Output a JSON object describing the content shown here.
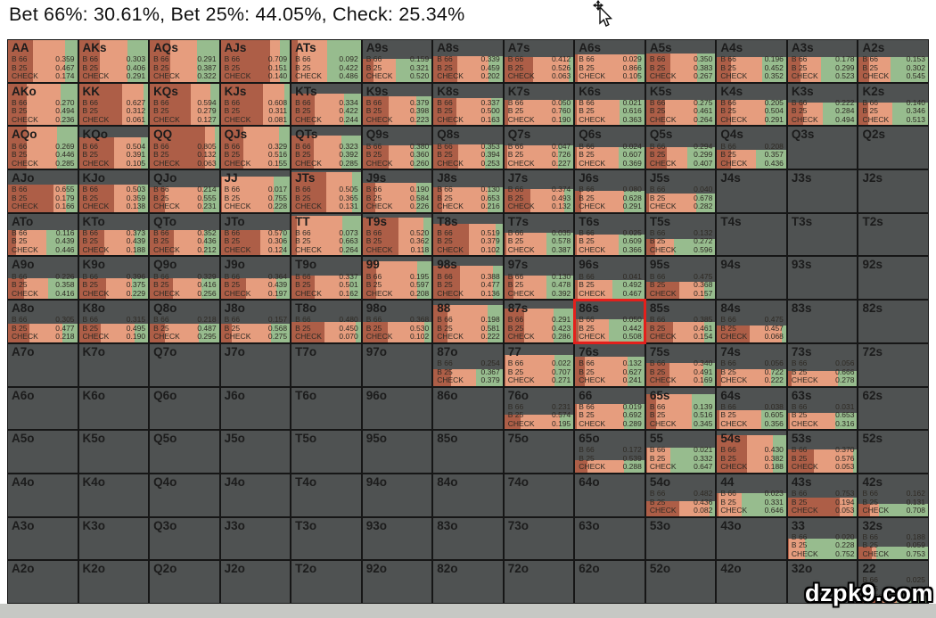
{
  "header": {
    "title": "Bet 66%: 30.61%, Bet 25%: 44.05%, Check: 25.34%",
    "bet66_total": "30.61%",
    "bet25_total": "44.05%",
    "check_total": "25.34%"
  },
  "watermark": {
    "text": "dzpk9.com"
  },
  "colors": {
    "bet66": "#ad5e47",
    "bet25": "#e69d7e",
    "check": "#97bc8e",
    "empty_cell": "#4f5252",
    "grid_line": "#161616",
    "selection": "#e3201c",
    "bottom_strip": "#c6c8c4",
    "title_text": "#111111"
  },
  "grid": {
    "action_labels": [
      "B 66",
      "B 25",
      "CHECK"
    ],
    "selected_hand": "86s",
    "rows": [
      [
        {
          "h": "AA",
          "w": 1,
          "v": [
            "0.359",
            "0.467",
            "0.174"
          ]
        },
        {
          "h": "AKs",
          "w": 1,
          "v": [
            "0.303",
            "0.406",
            "0.291"
          ]
        },
        {
          "h": "AQs",
          "w": 1,
          "v": [
            "0.291",
            "0.387",
            "0.322"
          ]
        },
        {
          "h": "AJs",
          "w": 1,
          "v": [
            "0.709",
            "0.151",
            "0.140"
          ]
        },
        {
          "h": "ATs",
          "w": 1,
          "v": [
            "0.092",
            "0.422",
            "0.486"
          ]
        },
        {
          "h": "A9s",
          "w": 0.55,
          "v": [
            "0.159",
            "0.321",
            "0.520"
          ]
        },
        {
          "h": "A8s",
          "w": 0.62,
          "v": [
            "0.339",
            "0.459",
            "0.202"
          ]
        },
        {
          "h": "A7s",
          "w": 0.6,
          "v": [
            "0.412",
            "0.526",
            "0.063"
          ]
        },
        {
          "h": "A6s",
          "w": 0.65,
          "v": [
            "0.029",
            "0.866",
            "0.105"
          ]
        },
        {
          "h": "A5s",
          "w": 0.68,
          "v": [
            "0.350",
            "0.383",
            "0.267"
          ]
        },
        {
          "h": "A4s",
          "w": 0.6,
          "v": [
            "0.196",
            "0.452",
            "0.352"
          ]
        },
        {
          "h": "A3s",
          "w": 0.6,
          "v": [
            "0.178",
            "0.299",
            "0.523"
          ]
        },
        {
          "h": "A2s",
          "w": 0.6,
          "v": [
            "0.153",
            "0.302",
            "0.545"
          ]
        }
      ],
      [
        {
          "h": "AKo",
          "w": 1,
          "v": [
            "0.270",
            "0.494",
            "0.236"
          ]
        },
        {
          "h": "KK",
          "w": 1,
          "v": [
            "0.627",
            "0.312",
            "0.061"
          ]
        },
        {
          "h": "KQs",
          "w": 1,
          "v": [
            "0.594",
            "0.279",
            "0.127"
          ]
        },
        {
          "h": "KJs",
          "w": 1,
          "v": [
            "0.608",
            "0.311",
            "0.081"
          ]
        },
        {
          "h": "KTs",
          "w": 0.75,
          "v": [
            "0.334",
            "0.422",
            "0.244"
          ]
        },
        {
          "h": "K9s",
          "w": 0.7,
          "v": [
            "0.379",
            "0.398",
            "0.223"
          ]
        },
        {
          "h": "K8s",
          "w": 0.65,
          "v": [
            "0.337",
            "0.500",
            "0.163"
          ]
        },
        {
          "h": "K7s",
          "w": 0.6,
          "v": [
            "0.050",
            "0.760",
            "0.190"
          ]
        },
        {
          "h": "K6s",
          "w": 0.6,
          "v": [
            "0.021",
            "0.616",
            "0.363"
          ]
        },
        {
          "h": "K5s",
          "w": 0.6,
          "v": [
            "0.275",
            "0.461",
            "0.264"
          ]
        },
        {
          "h": "K4s",
          "w": 0.6,
          "v": [
            "0.205",
            "0.504",
            "0.291"
          ]
        },
        {
          "h": "K3s",
          "w": 0.55,
          "v": [
            "0.222",
            "0.284",
            "0.494"
          ]
        },
        {
          "h": "K2s",
          "w": 0.55,
          "v": [
            "0.140",
            "0.346",
            "0.513"
          ]
        }
      ],
      [
        {
          "h": "AQo",
          "w": 1,
          "v": [
            "0.269",
            "0.446",
            "0.285"
          ]
        },
        {
          "h": "KQo",
          "w": 0.75,
          "v": [
            "0.504",
            "0.391",
            "0.105"
          ]
        },
        {
          "h": "QQ",
          "w": 1,
          "v": [
            "0.805",
            "0.132",
            "0.063"
          ]
        },
        {
          "h": "QJs",
          "w": 1,
          "v": [
            "0.329",
            "0.516",
            "0.155"
          ]
        },
        {
          "h": "QTs",
          "w": 0.8,
          "v": [
            "0.323",
            "0.392",
            "0.285"
          ]
        },
        {
          "h": "Q9s",
          "w": 0.55,
          "v": [
            "0.380",
            "0.360",
            "0.260"
          ]
        },
        {
          "h": "Q8s",
          "w": 0.58,
          "v": [
            "0.353",
            "0.394",
            "0.253"
          ]
        },
        {
          "h": "Q7s",
          "w": 0.55,
          "v": [
            "0.047",
            "0.726",
            "0.227"
          ]
        },
        {
          "h": "Q6s",
          "w": 0.52,
          "v": [
            "0.024",
            "0.607",
            "0.369"
          ]
        },
        {
          "h": "Q5s",
          "w": 0.52,
          "v": [
            "0.294",
            "0.299",
            "0.407"
          ]
        },
        {
          "h": "Q4s",
          "w": 0.45,
          "v": [
            "0.208",
            "0.357",
            "0.436"
          ]
        },
        {
          "h": "Q3s"
        },
        {
          "h": "Q2s"
        }
      ],
      [
        {
          "h": "AJo",
          "w": 0.65,
          "v": [
            "0.655",
            "0.179",
            "0.166"
          ]
        },
        {
          "h": "KJo",
          "w": 0.65,
          "v": [
            "0.503",
            "0.359",
            "0.138"
          ]
        },
        {
          "h": "QJo",
          "w": 0.6,
          "v": [
            "0.214",
            "0.555",
            "0.231"
          ]
        },
        {
          "h": "JJ",
          "w": 0.85,
          "v": [
            "0.017",
            "0.755",
            "0.228"
          ]
        },
        {
          "h": "JTs",
          "w": 0.95,
          "v": [
            "0.505",
            "0.365",
            "0.131"
          ]
        },
        {
          "h": "J9s",
          "w": 0.7,
          "v": [
            "0.190",
            "0.584",
            "0.226"
          ]
        },
        {
          "h": "J8s",
          "w": 0.6,
          "v": [
            "0.130",
            "0.653",
            "0.216"
          ]
        },
        {
          "h": "J7s",
          "w": 0.55,
          "v": [
            "0.374",
            "0.493",
            "0.132"
          ]
        },
        {
          "h": "J6s",
          "w": 0.5,
          "v": [
            "0.080",
            "0.628",
            "0.291"
          ]
        },
        {
          "h": "J5s",
          "w": 0.45,
          "v": [
            "0.040",
            "0.678",
            "0.282"
          ]
        },
        {
          "h": "J4s"
        },
        {
          "h": "J3s"
        },
        {
          "h": "J2s"
        }
      ],
      [
        {
          "h": "ATo",
          "w": 0.6,
          "v": [
            "0.116",
            "0.439",
            "0.446"
          ]
        },
        {
          "h": "KTo",
          "w": 0.6,
          "v": [
            "0.373",
            "0.439",
            "0.188"
          ]
        },
        {
          "h": "QTo",
          "w": 0.6,
          "v": [
            "0.352",
            "0.436",
            "0.212"
          ]
        },
        {
          "h": "JTo",
          "w": 0.6,
          "v": [
            "0.570",
            "0.306",
            "0.124"
          ]
        },
        {
          "h": "TT",
          "w": 0.95,
          "v": [
            "0.073",
            "0.663",
            "0.264"
          ]
        },
        {
          "h": "T9s",
          "w": 0.9,
          "v": [
            "0.520",
            "0.362",
            "0.118"
          ]
        },
        {
          "h": "T8s",
          "w": 0.75,
          "v": [
            "0.519",
            "0.379",
            "0.102"
          ]
        },
        {
          "h": "T7s",
          "w": 0.55,
          "v": [
            "0.035",
            "0.578",
            "0.387"
          ]
        },
        {
          "h": "T6s",
          "w": 0.5,
          "v": [
            "0.025",
            "0.609",
            "0.366"
          ]
        },
        {
          "h": "T5s",
          "w": 0.4,
          "v": [
            "0.132",
            "0.272",
            "0.596"
          ]
        },
        {
          "h": "T4s"
        },
        {
          "h": "T3s"
        },
        {
          "h": "T2s"
        }
      ],
      [
        {
          "h": "A9o",
          "w": 0.5,
          "v": [
            "0.226",
            "0.358",
            "0.416"
          ]
        },
        {
          "h": "K9o",
          "w": 0.5,
          "v": [
            "0.396",
            "0.375",
            "0.229"
          ]
        },
        {
          "h": "Q9o",
          "w": 0.5,
          "v": [
            "0.329",
            "0.416",
            "0.256"
          ]
        },
        {
          "h": "J9o",
          "w": 0.5,
          "v": [
            "0.364",
            "0.439",
            "0.197"
          ]
        },
        {
          "h": "T9o",
          "w": 0.55,
          "v": [
            "0.337",
            "0.501",
            "0.162"
          ]
        },
        {
          "h": "99",
          "w": 0.9,
          "v": [
            "0.195",
            "0.597",
            "0.208"
          ]
        },
        {
          "h": "98s",
          "w": 0.8,
          "v": [
            "0.388",
            "0.477",
            "0.136"
          ]
        },
        {
          "h": "97s",
          "w": 0.55,
          "v": [
            "0.130",
            "0.478",
            "0.392"
          ]
        },
        {
          "h": "96s",
          "w": 0.45,
          "v": [
            "0.041",
            "0.492",
            "0.467"
          ]
        },
        {
          "h": "95s",
          "w": 0.4,
          "v": [
            "0.475",
            "0.368",
            "0.157"
          ]
        },
        {
          "h": "94s"
        },
        {
          "h": "93s"
        },
        {
          "h": "92s"
        }
      ],
      [
        {
          "h": "A8o",
          "w": 0.45,
          "v": [
            "0.305",
            "0.477",
            "0.218"
          ]
        },
        {
          "h": "K8o",
          "w": 0.45,
          "v": [
            "0.315",
            "0.495",
            "0.190"
          ]
        },
        {
          "h": "Q8o",
          "w": 0.45,
          "v": [
            "0.218",
            "0.487",
            "0.295"
          ]
        },
        {
          "h": "J8o",
          "w": 0.45,
          "v": [
            "0.157",
            "0.568",
            "0.275"
          ]
        },
        {
          "h": "T8o",
          "w": 0.5,
          "v": [
            "0.480",
            "0.450",
            "0.070"
          ]
        },
        {
          "h": "98o",
          "w": 0.5,
          "v": [
            "0.368",
            "0.530",
            "0.102"
          ]
        },
        {
          "h": "88",
          "w": 0.9,
          "v": [
            "0.198",
            "0.581",
            "0.222"
          ]
        },
        {
          "h": "87s",
          "w": 0.8,
          "v": [
            "0.291",
            "0.423",
            "0.286"
          ]
        },
        {
          "h": "86s",
          "w": 0.55,
          "v": [
            "0.050",
            "0.442",
            "0.508"
          ]
        },
        {
          "h": "85s",
          "w": 0.5,
          "v": [
            "0.385",
            "0.461",
            "0.154"
          ]
        },
        {
          "h": "84s",
          "w": 0.4,
          "v": [
            "0.475",
            "0.457",
            "0.068"
          ]
        },
        {
          "h": "83s"
        },
        {
          "h": "82s"
        }
      ],
      [
        {
          "h": "A7o"
        },
        {
          "h": "K7o"
        },
        {
          "h": "Q7o"
        },
        {
          "h": "J7o"
        },
        {
          "h": "T7o"
        },
        {
          "h": "97o"
        },
        {
          "h": "87o",
          "w": 0.4,
          "v": [
            "0.254",
            "0.367",
            "0.379"
          ]
        },
        {
          "h": "77",
          "w": 0.75,
          "v": [
            "0.022",
            "0.707",
            "0.271"
          ]
        },
        {
          "h": "76s",
          "w": 0.7,
          "v": [
            "0.132",
            "0.627",
            "0.241"
          ]
        },
        {
          "h": "75s",
          "w": 0.55,
          "v": [
            "0.340",
            "0.491",
            "0.169"
          ]
        },
        {
          "h": "74s",
          "w": 0.4,
          "v": [
            "0.056",
            "0.722",
            "0.222"
          ]
        },
        {
          "h": "73s",
          "w": 0.35,
          "v": [
            "0.056",
            "0.666",
            "0.278"
          ]
        },
        {
          "h": "72s"
        }
      ],
      [
        {
          "h": "A6o"
        },
        {
          "h": "K6o"
        },
        {
          "h": "Q6o"
        },
        {
          "h": "J6o"
        },
        {
          "h": "T6o"
        },
        {
          "h": "96o"
        },
        {
          "h": "86o"
        },
        {
          "h": "76o",
          "w": 0.35,
          "v": [
            "0.231",
            "0.574",
            "0.195"
          ]
        },
        {
          "h": "66",
          "w": 0.6,
          "v": [
            "0.019",
            "0.692",
            "0.289"
          ]
        },
        {
          "h": "65s",
          "w": 0.85,
          "v": [
            "0.139",
            "0.516",
            "0.345"
          ]
        },
        {
          "h": "64s",
          "w": 0.45,
          "v": [
            "0.038",
            "0.605",
            "0.356"
          ]
        },
        {
          "h": "63s",
          "w": 0.4,
          "v": [
            "0.031",
            "0.653",
            "0.316"
          ]
        },
        {
          "h": "62s"
        }
      ],
      [
        {
          "h": "A5o"
        },
        {
          "h": "K5o"
        },
        {
          "h": "Q5o"
        },
        {
          "h": "J5o"
        },
        {
          "h": "T5o"
        },
        {
          "h": "95o"
        },
        {
          "h": "85o"
        },
        {
          "h": "75o"
        },
        {
          "h": "65o",
          "w": 0.3,
          "v": [
            "0.172",
            "0.539",
            "0.288"
          ]
        },
        {
          "h": "55",
          "w": 0.6,
          "v": [
            "0.021",
            "0.332",
            "0.647"
          ]
        },
        {
          "h": "54s",
          "w": 0.9,
          "v": [
            "0.430",
            "0.382",
            "0.188"
          ]
        },
        {
          "h": "53s",
          "w": 0.55,
          "v": [
            "0.370",
            "0.576",
            "0.053"
          ]
        },
        {
          "h": "52s"
        }
      ],
      [
        {
          "h": "A4o"
        },
        {
          "h": "K4o"
        },
        {
          "h": "Q4o"
        },
        {
          "h": "J4o"
        },
        {
          "h": "T4o"
        },
        {
          "h": "94o"
        },
        {
          "h": "84o"
        },
        {
          "h": "74o"
        },
        {
          "h": "64o"
        },
        {
          "h": "54o",
          "w": 0.35,
          "v": [
            "0.482",
            "0.436",
            "0.082"
          ]
        },
        {
          "h": "44",
          "w": 0.55,
          "v": [
            "0.023",
            "0.331",
            "0.646"
          ]
        },
        {
          "h": "43s",
          "w": 0.45,
          "v": [
            "0.753",
            "0.194",
            "0.053"
          ]
        },
        {
          "h": "42s",
          "w": 0.3,
          "v": [
            "0.162",
            "0.131",
            "0.708"
          ]
        }
      ],
      [
        {
          "h": "A3o"
        },
        {
          "h": "K3o"
        },
        {
          "h": "Q3o"
        },
        {
          "h": "J3o"
        },
        {
          "h": "T3o"
        },
        {
          "h": "93o"
        },
        {
          "h": "83o"
        },
        {
          "h": "73o"
        },
        {
          "h": "63o"
        },
        {
          "h": "53o"
        },
        {
          "h": "43o"
        },
        {
          "h": "33",
          "w": 0.5,
          "v": [
            "0.020",
            "0.228",
            "0.752"
          ]
        },
        {
          "h": "32s",
          "w": 0.3,
          "v": [
            "0.188",
            "0.059",
            "0.753"
          ]
        }
      ],
      [
        {
          "h": "A2o"
        },
        {
          "h": "K2o"
        },
        {
          "h": "Q2o"
        },
        {
          "h": "J2o"
        },
        {
          "h": "T2o"
        },
        {
          "h": "92o"
        },
        {
          "h": "82o"
        },
        {
          "h": "72o"
        },
        {
          "h": "62o"
        },
        {
          "h": "52o"
        },
        {
          "h": "42o"
        },
        {
          "h": "32o"
        },
        {
          "h": "22",
          "w": 0.18,
          "v": [
            "0.025",
            "",
            ""
          ],
          "seg": [
            0.3,
            0.25,
            0.45
          ]
        }
      ]
    ]
  }
}
